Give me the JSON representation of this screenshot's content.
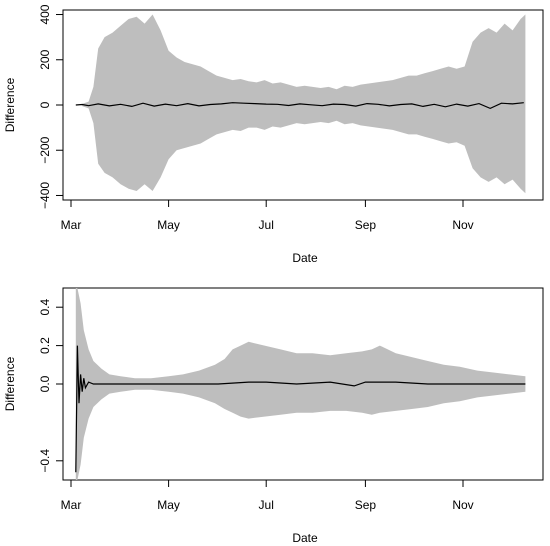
{
  "chart_data": [
    {
      "type": "area",
      "xlabel": "Date",
      "ylabel": "Difference",
      "x_range": [
        "2023-02-24",
        "2023-12-21"
      ],
      "ylim": [
        -420,
        420
      ],
      "x_ticks": [
        {
          "date": "2023-03-01",
          "label": "Mar"
        },
        {
          "date": "2023-05-01",
          "label": "May"
        },
        {
          "date": "2023-07-01",
          "label": "Jul"
        },
        {
          "date": "2023-09-01",
          "label": "Sep"
        },
        {
          "date": "2023-11-01",
          "label": "Nov"
        }
      ],
      "y_ticks": [
        {
          "value": -400,
          "label": "−400"
        },
        {
          "value": -200,
          "label": "−200"
        },
        {
          "value": 0,
          "label": "0"
        },
        {
          "value": 200,
          "label": "200"
        },
        {
          "value": 400,
          "label": "400"
        }
      ],
      "band_color": "#bebebe",
      "line_color": "#000000",
      "band": {
        "x": [
          "2023-03-08",
          "2023-03-12",
          "2023-03-15",
          "2023-03-18",
          "2023-03-22",
          "2023-03-27",
          "2023-04-01",
          "2023-04-06",
          "2023-04-11",
          "2023-04-16",
          "2023-04-21",
          "2023-04-26",
          "2023-05-01",
          "2023-05-06",
          "2023-05-11",
          "2023-05-16",
          "2023-05-21",
          "2023-05-26",
          "2023-05-31",
          "2023-06-05",
          "2023-06-10",
          "2023-06-15",
          "2023-06-20",
          "2023-06-25",
          "2023-06-30",
          "2023-07-05",
          "2023-07-10",
          "2023-07-15",
          "2023-07-20",
          "2023-07-25",
          "2023-07-30",
          "2023-08-04",
          "2023-08-09",
          "2023-08-14",
          "2023-08-19",
          "2023-08-24",
          "2023-08-29",
          "2023-09-03",
          "2023-09-08",
          "2023-09-13",
          "2023-09-18",
          "2023-09-23",
          "2023-09-28",
          "2023-10-03",
          "2023-10-08",
          "2023-10-13",
          "2023-10-18",
          "2023-10-23",
          "2023-10-28",
          "2023-11-02",
          "2023-11-07",
          "2023-11-12",
          "2023-11-17",
          "2023-11-22",
          "2023-11-27",
          "2023-12-02",
          "2023-12-07",
          "2023-12-10"
        ],
        "upper": [
          5,
          15,
          80,
          250,
          300,
          320,
          350,
          380,
          390,
          360,
          400,
          330,
          240,
          210,
          190,
          180,
          170,
          150,
          130,
          120,
          110,
          115,
          105,
          100,
          110,
          95,
          100,
          90,
          80,
          85,
          80,
          75,
          80,
          70,
          85,
          80,
          90,
          95,
          100,
          105,
          110,
          120,
          130,
          130,
          140,
          150,
          160,
          170,
          160,
          170,
          280,
          320,
          340,
          320,
          360,
          330,
          380,
          400
        ],
        "lower": [
          -5,
          -15,
          -80,
          -260,
          -300,
          -320,
          -350,
          -370,
          -380,
          -350,
          -380,
          -320,
          -240,
          -200,
          -190,
          -180,
          -170,
          -150,
          -130,
          -120,
          -110,
          -115,
          -100,
          -100,
          -110,
          -95,
          -100,
          -90,
          -80,
          -85,
          -80,
          -75,
          -80,
          -70,
          -85,
          -80,
          -90,
          -95,
          -100,
          -105,
          -110,
          -120,
          -130,
          -130,
          -140,
          -150,
          -160,
          -170,
          -165,
          -180,
          -280,
          -320,
          -340,
          -320,
          -350,
          -330,
          -370,
          -390
        ]
      },
      "series": [
        {
          "x": [
            "2023-03-04",
            "2023-03-08",
            "2023-03-12",
            "2023-03-18",
            "2023-03-25",
            "2023-04-01",
            "2023-04-08",
            "2023-04-15",
            "2023-04-22",
            "2023-04-29",
            "2023-05-06",
            "2023-05-13",
            "2023-05-20",
            "2023-05-27",
            "2023-06-03",
            "2023-06-10",
            "2023-06-17",
            "2023-06-24",
            "2023-07-01",
            "2023-07-08",
            "2023-07-15",
            "2023-07-22",
            "2023-07-29",
            "2023-08-05",
            "2023-08-12",
            "2023-08-19",
            "2023-08-26",
            "2023-09-02",
            "2023-09-09",
            "2023-09-16",
            "2023-09-23",
            "2023-09-30",
            "2023-10-07",
            "2023-10-14",
            "2023-10-21",
            "2023-10-28",
            "2023-11-04",
            "2023-11-11",
            "2023-11-18",
            "2023-11-25",
            "2023-12-02",
            "2023-12-09"
          ],
          "values": [
            0,
            2,
            -3,
            5,
            -4,
            3,
            -6,
            8,
            -5,
            4,
            -3,
            6,
            -4,
            2,
            5,
            10,
            8,
            6,
            4,
            3,
            -2,
            5,
            1,
            -3,
            4,
            2,
            -5,
            6,
            3,
            -4,
            2,
            5,
            -6,
            3,
            -8,
            4,
            -5,
            6,
            -15,
            8,
            5,
            10
          ]
        }
      ]
    },
    {
      "type": "area",
      "xlabel": "Date",
      "ylabel": "Difference",
      "x_range": [
        "2023-02-24",
        "2023-12-21"
      ],
      "ylim": [
        -0.5,
        0.5
      ],
      "x_ticks": [
        {
          "date": "2023-03-01",
          "label": "Mar"
        },
        {
          "date": "2023-05-01",
          "label": "May"
        },
        {
          "date": "2023-07-01",
          "label": "Jul"
        },
        {
          "date": "2023-09-01",
          "label": "Sep"
        },
        {
          "date": "2023-11-01",
          "label": "Nov"
        }
      ],
      "y_ticks": [
        {
          "value": -0.4,
          "label": "−0.4"
        },
        {
          "value": 0,
          "label": "0.0"
        },
        {
          "value": 0.2,
          "label": "0.2"
        },
        {
          "value": 0.4,
          "label": "0.4"
        }
      ],
      "band_color": "#bebebe",
      "line_color": "#000000",
      "band": {
        "x": [
          "2023-03-04",
          "2023-03-05",
          "2023-03-07",
          "2023-03-09",
          "2023-03-12",
          "2023-03-15",
          "2023-03-20",
          "2023-03-25",
          "2023-04-01",
          "2023-04-10",
          "2023-04-20",
          "2023-05-01",
          "2023-05-10",
          "2023-05-20",
          "2023-05-30",
          "2023-06-05",
          "2023-06-10",
          "2023-06-15",
          "2023-06-20",
          "2023-06-30",
          "2023-07-10",
          "2023-07-20",
          "2023-07-30",
          "2023-08-10",
          "2023-08-20",
          "2023-08-30",
          "2023-09-05",
          "2023-09-10",
          "2023-09-20",
          "2023-09-30",
          "2023-10-10",
          "2023-10-20",
          "2023-10-30",
          "2023-11-10",
          "2023-11-20",
          "2023-11-30",
          "2023-12-10"
        ],
        "upper": [
          0.5,
          0.5,
          0.42,
          0.28,
          0.18,
          0.12,
          0.08,
          0.05,
          0.04,
          0.03,
          0.03,
          0.04,
          0.05,
          0.07,
          0.1,
          0.13,
          0.18,
          0.2,
          0.22,
          0.2,
          0.18,
          0.16,
          0.16,
          0.15,
          0.16,
          0.17,
          0.18,
          0.2,
          0.16,
          0.14,
          0.12,
          0.1,
          0.09,
          0.07,
          0.06,
          0.05,
          0.04
        ],
        "lower": [
          -0.5,
          -0.5,
          -0.42,
          -0.28,
          -0.18,
          -0.12,
          -0.08,
          -0.05,
          -0.04,
          -0.03,
          -0.03,
          -0.04,
          -0.05,
          -0.07,
          -0.1,
          -0.13,
          -0.15,
          -0.17,
          -0.18,
          -0.17,
          -0.16,
          -0.15,
          -0.15,
          -0.14,
          -0.14,
          -0.15,
          -0.16,
          -0.15,
          -0.14,
          -0.13,
          -0.12,
          -0.1,
          -0.09,
          -0.07,
          -0.06,
          -0.05,
          -0.04
        ]
      },
      "series": [
        {
          "x": [
            "2023-03-04",
            "2023-03-05",
            "2023-03-06",
            "2023-03-07",
            "2023-03-08",
            "2023-03-09",
            "2023-03-10",
            "2023-03-12",
            "2023-03-15",
            "2023-03-20",
            "2023-04-01",
            "2023-05-01",
            "2023-06-01",
            "2023-06-20",
            "2023-07-01",
            "2023-07-20",
            "2023-08-10",
            "2023-08-25",
            "2023-09-01",
            "2023-09-20",
            "2023-10-10",
            "2023-11-01",
            "2023-12-10"
          ],
          "values": [
            -0.46,
            0.2,
            -0.1,
            0.05,
            -0.04,
            0.03,
            -0.02,
            0.01,
            0.0,
            0.0,
            0.0,
            0.0,
            0.0,
            0.01,
            0.01,
            0.0,
            0.01,
            -0.01,
            0.01,
            0.01,
            0.0,
            0.0,
            0.0
          ]
        }
      ]
    }
  ]
}
